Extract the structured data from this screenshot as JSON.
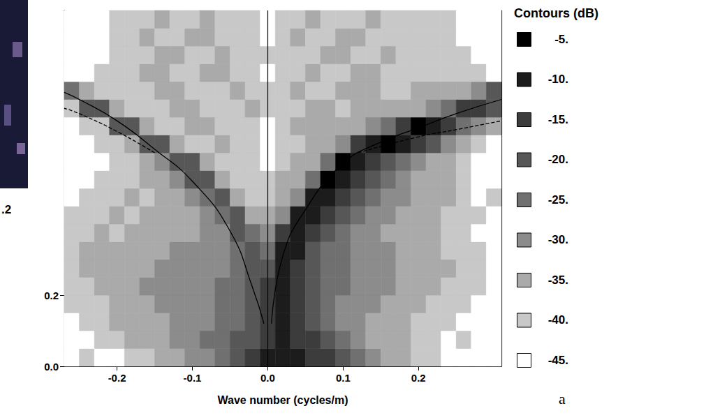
{
  "chart_data": {
    "type": "contour",
    "x_label": "Wave number (cycles/m)",
    "xlim": [
      -0.27,
      0.31
    ],
    "xticks": [
      -0.2,
      -0.1,
      {
        "value": 0,
        "label": "0.0"
      },
      0.1,
      0.2
    ],
    "ylim": [
      0,
      1
    ],
    "yticks": [
      {
        "value": 0,
        "label": "0.0"
      },
      {
        "value": 0.2,
        "label": "0.2"
      }
    ],
    "x_edges": [
      -0.27,
      -0.25,
      -0.23,
      -0.21,
      -0.19,
      -0.17,
      -0.15,
      -0.13,
      -0.11,
      -0.09,
      -0.07,
      -0.05,
      -0.03,
      -0.01,
      0.01,
      0.03,
      0.05,
      0.07,
      0.09,
      0.11,
      0.13,
      0.15,
      0.17,
      0.19,
      0.21,
      0.23,
      0.25,
      0.27,
      0.29,
      0.31
    ],
    "y_edges": [
      0,
      0.05,
      0.1,
      0.15,
      0.2,
      0.25,
      0.3,
      0.35,
      0.4,
      0.45,
      0.5,
      0.55,
      0.6,
      0.65,
      0.7,
      0.75,
      0.8,
      0.85,
      0.9,
      0.95,
      1
    ],
    "cells": [
      [
        -45,
        -40,
        -45,
        -45,
        -40,
        -40,
        -35,
        -35,
        -30,
        -30,
        -25,
        -20,
        -15,
        -10,
        -10,
        -10,
        -15,
        -15,
        -20,
        -25,
        -30,
        -35,
        -35,
        -40,
        -40,
        -45,
        -45,
        -45,
        -45
      ],
      [
        -45,
        -45,
        -40,
        -40,
        -35,
        -35,
        -35,
        -30,
        -30,
        -25,
        -25,
        -20,
        -20,
        -15,
        -10,
        -15,
        -15,
        -20,
        -25,
        -30,
        -35,
        -35,
        -35,
        -40,
        -40,
        -45,
        -40,
        -45,
        -45
      ],
      [
        -45,
        -40,
        -40,
        -35,
        -35,
        -35,
        -35,
        -30,
        -30,
        -30,
        -25,
        -25,
        -20,
        -15,
        -10,
        -15,
        -20,
        -25,
        -30,
        -30,
        -35,
        -35,
        -35,
        -40,
        -40,
        -40,
        -45,
        -45,
        -45
      ],
      [
        -40,
        -40,
        -40,
        -35,
        -35,
        -35,
        -30,
        -30,
        -30,
        -30,
        -25,
        -25,
        -20,
        -15,
        -10,
        -15,
        -20,
        -25,
        -30,
        -30,
        -30,
        -35,
        -35,
        -35,
        -40,
        -40,
        -40,
        -45,
        -45
      ],
      [
        -40,
        -40,
        -35,
        -35,
        -35,
        -30,
        -30,
        -30,
        -30,
        -30,
        -25,
        -25,
        -20,
        -15,
        -10,
        -15,
        -20,
        -25,
        -25,
        -30,
        -30,
        -30,
        -35,
        -35,
        -35,
        -40,
        -40,
        -40,
        -45
      ],
      [
        -40,
        -35,
        -35,
        -35,
        -35,
        -35,
        -30,
        -30,
        -30,
        -30,
        -30,
        -25,
        -20,
        -20,
        -10,
        -15,
        -20,
        -25,
        -25,
        -30,
        -30,
        -30,
        -35,
        -35,
        -35,
        -35,
        -40,
        -40,
        -45
      ],
      [
        -40,
        -35,
        -35,
        -35,
        -35,
        -35,
        -35,
        -30,
        -30,
        -30,
        -30,
        -25,
        -20,
        -25,
        -10,
        -10,
        -20,
        -25,
        -25,
        -30,
        -30,
        -30,
        -35,
        -35,
        -35,
        -40,
        -40,
        -40,
        -45
      ],
      [
        -40,
        -40,
        -35,
        -40,
        -35,
        -35,
        -35,
        -35,
        -35,
        -30,
        -30,
        -20,
        -25,
        -30,
        -15,
        -10,
        -15,
        -20,
        -25,
        -30,
        -30,
        -35,
        -35,
        -35,
        -35,
        -40,
        -40,
        -45,
        -45
      ],
      [
        -40,
        -40,
        -40,
        -35,
        -40,
        -35,
        -35,
        -35,
        -35,
        -30,
        -25,
        -20,
        -35,
        -35,
        -30,
        -10,
        -10,
        -15,
        -20,
        -25,
        -30,
        -30,
        -35,
        -35,
        -35,
        -40,
        -40,
        -40,
        -45
      ],
      [
        -45,
        -40,
        -40,
        -40,
        -35,
        -40,
        -35,
        -35,
        -30,
        -25,
        -20,
        -35,
        -40,
        -40,
        -35,
        -30,
        -10,
        -10,
        -15,
        -20,
        -25,
        -30,
        -30,
        -35,
        -35,
        -35,
        -40,
        -45,
        -40
      ],
      [
        -45,
        -45,
        -40,
        -40,
        -40,
        -35,
        -35,
        -30,
        -20,
        -20,
        -35,
        -40,
        -40,
        -40,
        -35,
        -35,
        -25,
        -5,
        -10,
        -15,
        -20,
        -25,
        -30,
        -35,
        -35,
        -35,
        -40,
        -45,
        -45
      ],
      [
        -45,
        -45,
        -45,
        -40,
        -40,
        -35,
        -30,
        -20,
        -20,
        -35,
        -40,
        -40,
        -40,
        -45,
        -40,
        -35,
        -35,
        -25,
        -5,
        -10,
        -15,
        -20,
        -25,
        -30,
        -35,
        -35,
        -40,
        -45,
        -45
      ],
      [
        -45,
        -45,
        -40,
        -40,
        -35,
        -20,
        -20,
        -35,
        -40,
        -40,
        -35,
        -40,
        -40,
        -45,
        -40,
        -40,
        -35,
        -35,
        -30,
        -15,
        -10,
        -5,
        -10,
        -15,
        -20,
        -30,
        -35,
        -40,
        -45
      ],
      [
        -45,
        -40,
        -40,
        -20,
        -20,
        -35,
        -40,
        -40,
        -35,
        -35,
        -40,
        -40,
        -40,
        -45,
        -40,
        -35,
        -35,
        -35,
        -35,
        -35,
        -30,
        -25,
        -15,
        -5,
        -10,
        -15,
        -25,
        -30,
        -35
      ],
      [
        -40,
        -20,
        -20,
        -35,
        -40,
        -40,
        -40,
        -35,
        -35,
        -40,
        -40,
        -40,
        -35,
        -40,
        -40,
        -40,
        -35,
        -35,
        -40,
        -35,
        -35,
        -35,
        -35,
        -35,
        -30,
        -25,
        -15,
        -15,
        -20
      ],
      [
        -25,
        -35,
        -40,
        -40,
        -40,
        -40,
        -35,
        -35,
        -40,
        -40,
        -40,
        -35,
        -40,
        -40,
        -40,
        -35,
        -40,
        -40,
        -35,
        -35,
        -35,
        -40,
        -40,
        -35,
        -35,
        -35,
        -35,
        -30,
        -20
      ],
      [
        -45,
        -45,
        -40,
        -40,
        -40,
        -35,
        -35,
        -40,
        -40,
        -35,
        -35,
        -40,
        -40,
        -45,
        -40,
        -40,
        -35,
        -40,
        -40,
        -35,
        -35,
        -40,
        -40,
        -40,
        -40,
        -40,
        -40,
        -40,
        -45
      ],
      [
        -45,
        -45,
        -45,
        -40,
        -40,
        -40,
        -35,
        -35,
        -40,
        -40,
        -35,
        -40,
        -40,
        -40,
        -40,
        -40,
        -40,
        -35,
        -35,
        -40,
        -40,
        -35,
        -40,
        -40,
        -40,
        -40,
        -40,
        -45,
        -45
      ],
      [
        -45,
        -45,
        -45,
        -40,
        -40,
        -35,
        -40,
        -40,
        -35,
        -35,
        -40,
        -40,
        -40,
        -45,
        -40,
        -35,
        -40,
        -40,
        -35,
        -35,
        -40,
        -40,
        -40,
        -40,
        -40,
        -40,
        -45,
        -45,
        -45
      ],
      [
        -45,
        -45,
        -45,
        -40,
        -40,
        -40,
        -35,
        -40,
        -40,
        -35,
        -40,
        -40,
        -40,
        -45,
        -40,
        -40,
        -35,
        -40,
        -40,
        -40,
        -35,
        -40,
        -40,
        -40,
        -40,
        -40,
        -45,
        -45,
        -45
      ]
    ],
    "colorbar": {
      "title": "Contours (dB)",
      "levels": [
        -5,
        -10,
        -15,
        -20,
        -25,
        -30,
        -35,
        -40,
        -45
      ],
      "labels": [
        "-5.",
        "-10.",
        "-15.",
        "-20.",
        "-25.",
        "-30.",
        "-35.",
        "-40.",
        "-45."
      ],
      "colors": [
        "#000000",
        "#1c1c1c",
        "#3c3c3c",
        "#575757",
        "#707070",
        "#8c8c8c",
        "#aaaaaa",
        "#c8c8c8",
        "#ffffff"
      ]
    },
    "lines": [
      {
        "line_style": "solid",
        "x": [
          0.005,
          0.02,
          0.05,
          0.1,
          0.15,
          0.2,
          0.25,
          0.31
        ],
        "y": [
          0.12,
          0.31,
          0.44,
          0.57,
          0.63,
          0.67,
          0.71,
          0.75
        ]
      },
      {
        "line_style": "solid",
        "x": [
          -0.005,
          -0.02,
          -0.05,
          -0.1,
          -0.15,
          -0.2,
          -0.25,
          -0.27
        ],
        "y": [
          0.12,
          0.22,
          0.38,
          0.52,
          0.61,
          0.69,
          0.75,
          0.77
        ]
      },
      {
        "line_style": "dashed",
        "x": [
          0.12,
          0.2,
          0.25,
          0.31
        ],
        "y": [
          0.6,
          0.645,
          0.665,
          0.69
        ]
      },
      {
        "line_style": "dashed",
        "x": [
          -0.15,
          -0.2,
          -0.25,
          -0.27
        ],
        "y": [
          0.6,
          0.66,
          0.71,
          0.725
        ]
      }
    ],
    "reference_x": 0,
    "panel_label": "a",
    "inset_label": ".2"
  }
}
